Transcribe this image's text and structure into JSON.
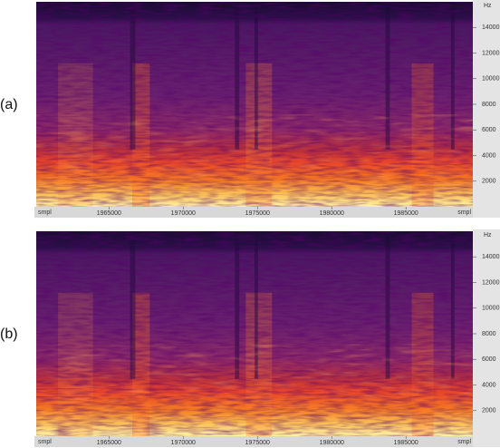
{
  "chart_data": [
    {
      "type": "spectrogram",
      "label": "(a)",
      "xlabel": "smpl",
      "ylabel": "Hz",
      "xlim": [
        1960100,
        1989500
      ],
      "xticks": [
        1965000,
        1970000,
        1975000,
        1980000,
        1985000
      ],
      "ylim": [
        0,
        16000
      ],
      "yticks": [
        2000,
        4000,
        6000,
        8000,
        10000,
        12000,
        14000
      ]
    },
    {
      "type": "spectrogram",
      "label": "(b)",
      "xlabel": "smpl",
      "ylabel": "Hz",
      "xlim": [
        1960100,
        1989500
      ],
      "xticks": [
        1965000,
        1970000,
        1975000,
        1980000,
        1985000
      ],
      "ylim": [
        0,
        16000
      ],
      "yticks": [
        2000,
        4000,
        6000,
        8000,
        10000,
        12000,
        14000
      ]
    }
  ]
}
